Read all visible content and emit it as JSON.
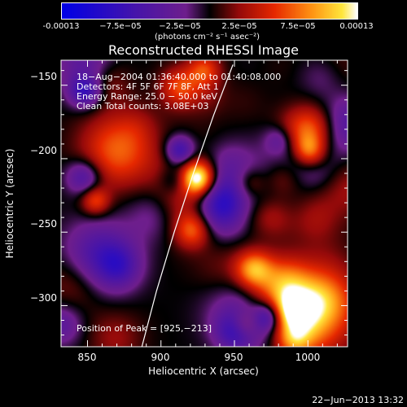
{
  "colorbar": {
    "ticks": [
      "-0.00013",
      "−7.5e−05",
      "−2.5e−05",
      "2.5e−05",
      "7.5e−05",
      "0.00013"
    ],
    "units": "(photons cm⁻² s⁻¹ asec⁻²)",
    "vmin": -0.00013,
    "vmax": 0.00013
  },
  "chart_data": {
    "type": "heatmap",
    "title": "Reconstructed RHESSI Image",
    "xlabel": "Heliocentric X (arcsec)",
    "ylabel": "Heliocentric Y (arcsec)",
    "xlim": [
      832,
      1027
    ],
    "ylim": [
      -328,
      -133
    ],
    "x_ticks": [
      850,
      900,
      950,
      1000
    ],
    "y_ticks": [
      -150,
      -200,
      -250,
      -300
    ],
    "x_tick_labels": [
      "850",
      "900",
      "950",
      "1000"
    ],
    "y_tick_labels": [
      "−150",
      "−200",
      "−250",
      "−300"
    ],
    "peak": [
      925,
      -213
    ],
    "limb_curve": [
      [
        887,
        -328
      ],
      [
        897,
        -290
      ],
      [
        909,
        -250
      ],
      [
        922,
        -210
      ],
      [
        936,
        -170
      ],
      [
        949,
        -136
      ]
    ],
    "annotations": {
      "time": "18−Aug−2004 01:36:40.000 to 01:40:08.000",
      "detectors": "Detectors: 4F 5F 6F 7F 8F, Att 1",
      "energy": "Energy Range: 25.0 − 50.0 keV",
      "method": "Clean    Total counts: 3.08E+03",
      "peak_text": "Position of Peak = [925,−213]"
    }
  },
  "footer": {
    "date": "22−Jun−2013 13:32"
  }
}
